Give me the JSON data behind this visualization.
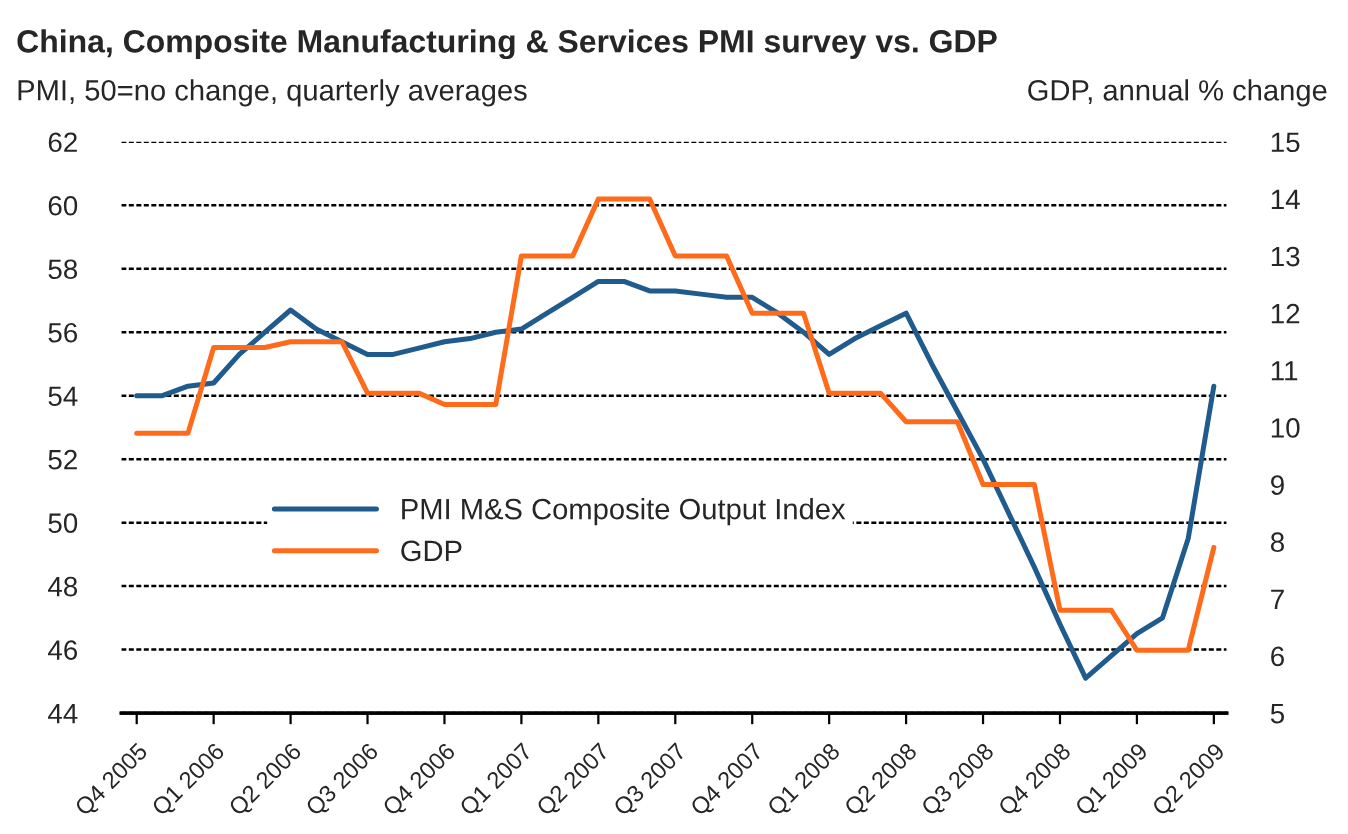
{
  "chart_data": {
    "type": "line",
    "title": "China, Composite Manufacturing & Services PMI survey vs. GDP",
    "ylabel": "PMI, 50=no change, quarterly averages",
    "y2label": "GDP, annual % change",
    "categories": [
      "Q4 2005",
      null,
      null,
      "Q1 2006",
      null,
      null,
      "Q2 2006",
      null,
      null,
      "Q3 2006",
      null,
      null,
      "Q4 2006",
      null,
      null,
      "Q1 2007",
      null,
      null,
      "Q2 2007",
      null,
      null,
      "Q3 2007",
      null,
      null,
      "Q4 2007",
      null,
      null,
      "Q1 2008",
      null,
      null,
      "Q2 2008",
      null,
      null,
      "Q3 2008",
      null,
      null,
      "Q4 2008",
      null,
      null,
      "Q1 2009",
      null,
      null,
      "Q2 2009"
    ],
    "series": [
      {
        "name": "PMI M&S Composite Output Index",
        "color": "#1f5b8c",
        "values": [
          54.0,
          54.0,
          54.3,
          54.4,
          55.3,
          56.0,
          56.7,
          56.1,
          55.7,
          55.3,
          55.3,
          55.5,
          55.7,
          55.8,
          56.0,
          56.1,
          56.6,
          57.1,
          57.6,
          57.6,
          57.3,
          57.3,
          57.2,
          57.1,
          57.1,
          56.6,
          56.0,
          55.3,
          55.8,
          56.2,
          56.6,
          55.0,
          53.5,
          52.0,
          50.3,
          48.6,
          46.8,
          45.1,
          45.8,
          46.5,
          47.0,
          49.5,
          54.3
        ]
      },
      {
        "name": "GDP",
        "color": "#ff6b1a",
        "axis": "y2",
        "values": [
          9.9,
          9.9,
          9.9,
          11.4,
          11.4,
          11.4,
          11.5,
          11.5,
          11.5,
          10.6,
          10.6,
          10.6,
          10.4,
          10.4,
          10.4,
          13.0,
          13.0,
          13.0,
          14.0,
          14.0,
          14.0,
          13.0,
          13.0,
          13.0,
          12.0,
          12.0,
          12.0,
          10.6,
          10.6,
          10.6,
          10.1,
          10.1,
          10.1,
          9.0,
          9.0,
          9.0,
          6.8,
          6.8,
          6.8,
          6.1,
          6.1,
          6.1,
          7.9
        ]
      }
    ],
    "ylim": [
      44,
      62
    ],
    "yticks": [
      44,
      46,
      48,
      50,
      52,
      54,
      56,
      58,
      60,
      62
    ],
    "y2lim": [
      5,
      15
    ],
    "y2ticks": [
      5,
      6,
      7,
      8,
      9,
      10,
      11,
      12,
      13,
      14,
      15
    ],
    "grid": "y",
    "legend": "bottom left",
    "marker": "none",
    "line_style": "solid"
  }
}
